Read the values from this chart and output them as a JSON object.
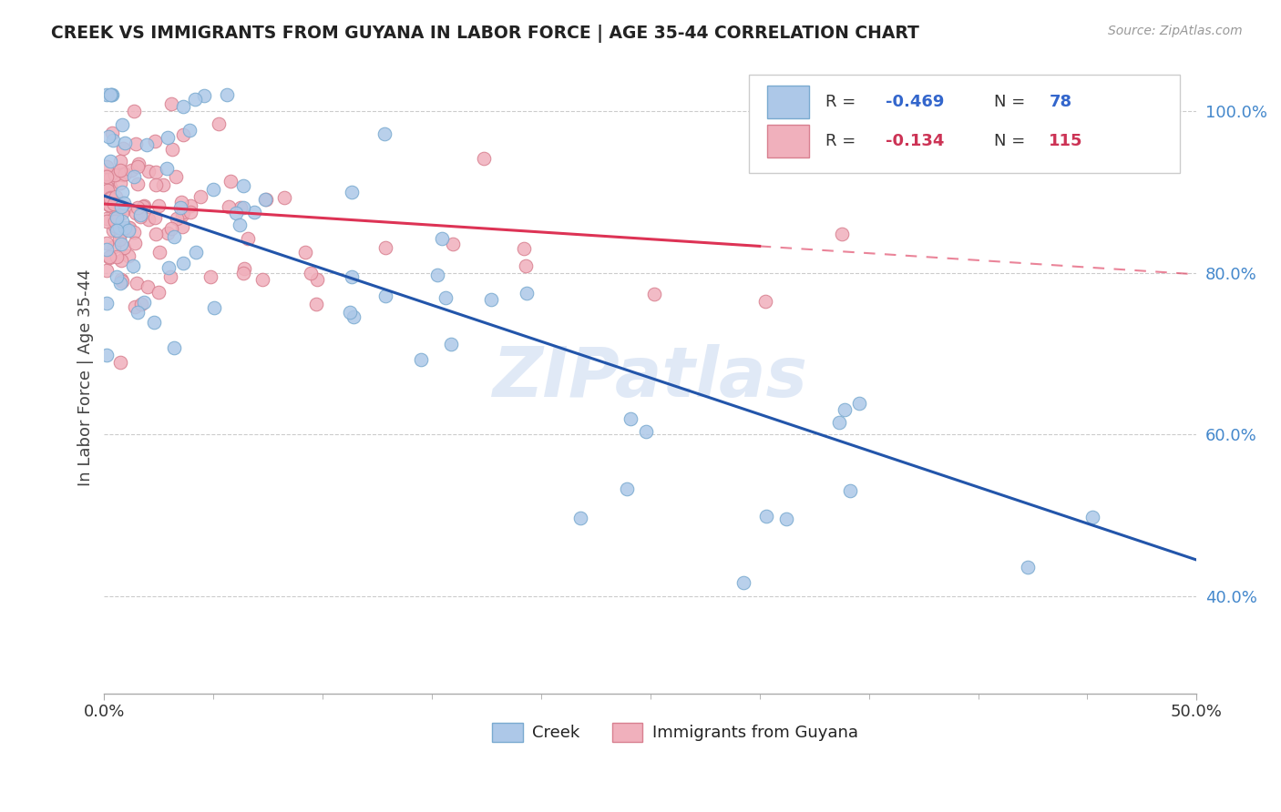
{
  "title": "CREEK VS IMMIGRANTS FROM GUYANA IN LABOR FORCE | AGE 35-44 CORRELATION CHART",
  "source": "Source: ZipAtlas.com",
  "ylabel": "In Labor Force | Age 35-44",
  "xlim": [
    0.0,
    0.5
  ],
  "ylim": [
    0.28,
    1.06
  ],
  "x_ticks": [
    0.0,
    0.5
  ],
  "x_tick_labels": [
    "0.0%",
    "50.0%"
  ],
  "y_ticks": [
    0.4,
    0.6,
    0.8,
    1.0
  ],
  "y_tick_labels": [
    "40.0%",
    "60.0%",
    "80.0%",
    "100.0%"
  ],
  "creek_color": "#adc8e8",
  "creek_edge": "#7aaad0",
  "guyana_color": "#f0b0bc",
  "guyana_edge": "#d88090",
  "trend_creek_color": "#2255aa",
  "trend_guyana_color": "#dd3355",
  "watermark": "ZIPatlas",
  "legend_R_creek": "-0.469",
  "legend_N_creek": "78",
  "legend_R_guyana": "-0.134",
  "legend_N_guyana": "115",
  "creek_trend_x0": 0.0,
  "creek_trend_y0": 0.895,
  "creek_trend_x1": 0.5,
  "creek_trend_y1": 0.445,
  "guyana_trend_x0": 0.0,
  "guyana_trend_y0": 0.885,
  "guyana_trend_x1_solid": 0.3,
  "guyana_trend_x1": 0.5,
  "guyana_trend_y1": 0.798
}
